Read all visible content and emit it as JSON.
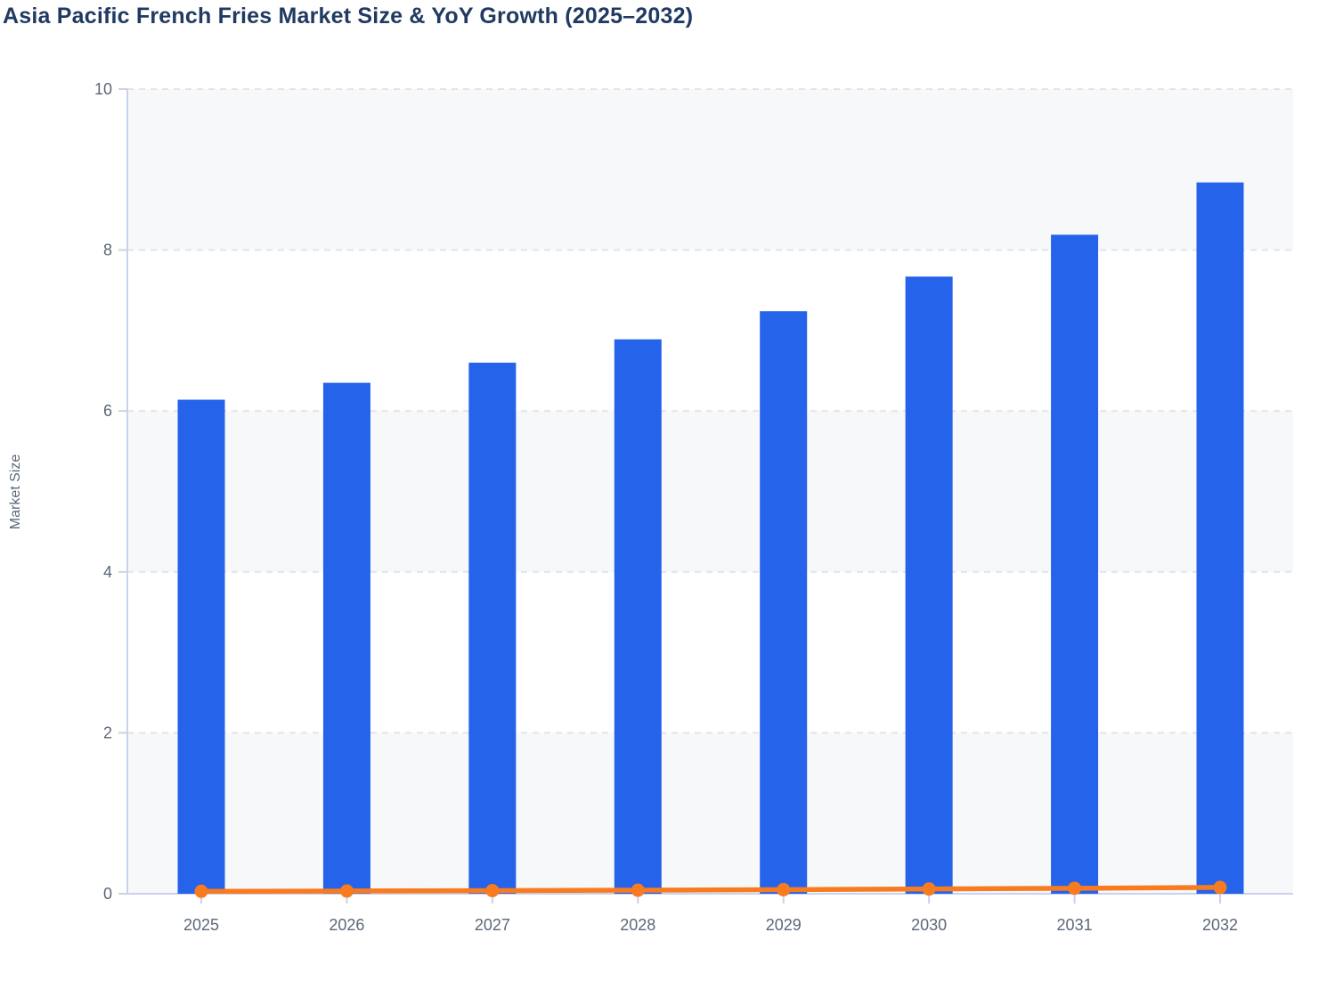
{
  "title": "Asia Pacific French Fries Market Size & YoY Growth (2025–2032)",
  "colors": {
    "bar": "#2563eb",
    "line": "#f87b20",
    "title_text": "#203a61",
    "tick_label": "#5c6879",
    "axis_title": "#5c6879",
    "gridline": "#e2e4ea",
    "axis_line": "#c9d2ee",
    "y_tick_mark": "#ccd2de",
    "band_gray": "#f7f8fa",
    "band_white": "#ffffff",
    "background": "#ffffff"
  },
  "chart_data": {
    "type": "combo-bar-line",
    "title": "Asia Pacific French Fries Market Size & YoY Growth (2025–2032)",
    "categories": [
      "2025",
      "2026",
      "2027",
      "2028",
      "2029",
      "2030",
      "2031",
      "2032"
    ],
    "series": [
      {
        "name": "Market Size",
        "type": "bar",
        "color": "#2563eb",
        "values": [
          6.14,
          6.35,
          6.6,
          6.89,
          7.24,
          7.67,
          8.19,
          8.84
        ]
      },
      {
        "name": "YoY Growth",
        "type": "line",
        "color": "#f87b20",
        "values": [
          0.03,
          0.034,
          0.039,
          0.044,
          0.051,
          0.059,
          0.068,
          0.079
        ]
      }
    ],
    "xlabel": "",
    "ylabel": "Market Size",
    "ylim": [
      0,
      10
    ],
    "yticks": [
      0,
      2,
      4,
      6,
      8,
      10
    ],
    "grid": "horizontal-dashed",
    "bands": "alternating horizontal bands of 2 units, gray on 0-2 / 4-6 / 8-10",
    "legend": "none"
  }
}
